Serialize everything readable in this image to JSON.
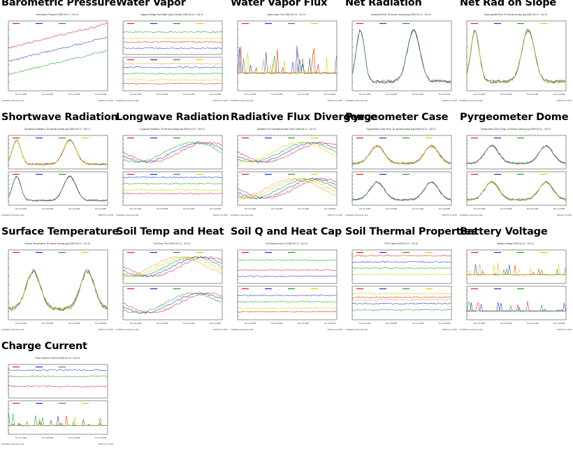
{
  "page": {
    "tiles": [
      {
        "id": "barometric-pressure",
        "title": "Barometric Pressure",
        "plot_title": "Barometric Pressure 2008 Oct 12 - Oct 14",
        "panels": 1
      },
      {
        "id": "water-vapor",
        "title": "Water Vapor",
        "plot_title": "Hygrom Voltage and Water Vapor Density 2008 Oct 12 - Oct 14",
        "panels": 2
      },
      {
        "id": "water-vapor-flux",
        "title": "Water Vapor Flux",
        "plot_title": "Water Vapor Flux 2008 Oct 12 - Oct 14",
        "panels": 1
      },
      {
        "id": "net-radiation",
        "title": "Net Radiation",
        "plot_title": "Horizontal Rnet, 30 minute running avg 2008 Oct 12 - Oct 14",
        "panels": 1
      },
      {
        "id": "net-rad-on-slope",
        "title": "Net Rad on Slope",
        "plot_title": "Slope-parallel Rnet, 30 minute running avg 2008 Oct 12 - Oct 14",
        "panels": 1
      },
      {
        "id": "shortwave-radiation",
        "title": "Shortwave Radiation",
        "plot_title": "Shortwave Radiation, 30 minute running avg 2008 Oct 12 - Oct 14",
        "panels": 2
      },
      {
        "id": "longwave-radiation",
        "title": "Longwave Radiation",
        "plot_title": "Longwave Radiation, 30 minute running avg 2008 Oct 12 - Oct 14",
        "panels": 2
      },
      {
        "id": "radiative-flux-divergence",
        "title": "Radiative Flux Divergence",
        "plot_title": "Radiative Flux Divergence Rad Tower 2008 Oct 12 - Oct 14",
        "panels": 2
      },
      {
        "id": "pyrgeometer-case",
        "title": "Pyrgeometer Case",
        "plot_title": "Pyrgeometer Case Temp, 30 minute running avg 2008 Oct 12 - Oct 14",
        "panels": 2
      },
      {
        "id": "pyrgeometer-dome",
        "title": "Pyrgeometer Dome",
        "plot_title": "Pyrgeometer Dome Temp, 30 minute running avg 2008 Oct 12 - Oct 14",
        "panels": 2
      },
      {
        "id": "surface-temperature",
        "title": "Surface Temperature",
        "plot_title": "Surface Temperature, 30 minute running avg 2008 Oct 12 - Oct 14",
        "panels": 1
      },
      {
        "id": "soil-temp-and-heat",
        "title": "Soil Temp and Heat",
        "plot_title": "Soil Temp, Flux 2008 Oct 12 - Oct 14",
        "panels": 2
      },
      {
        "id": "soil-q-and-heat-cap",
        "title": "Soil Q and Heat Cap",
        "plot_title": "Soil Moisture and Cs 2008 Oct 12 - Oct 14",
        "panels": 2
      },
      {
        "id": "soil-thermal-properties",
        "title": "Soil Thermal Properties",
        "plot_title": "TP01 Output 2008 Oct 12 - Oct 14",
        "panels": 2
      },
      {
        "id": "battery-voltage",
        "title": "Battery Voltage",
        "plot_title": "Battery Voltage 2008 Oct 12 - Oct 14",
        "panels": 2
      },
      {
        "id": "charge-current",
        "title": "Charge Current",
        "plot_title": "Power System Currents 2008 Oct 12 - Oct 14",
        "panels": 2
      }
    ],
    "time_axis_labels": [
      "Oct 12 1200",
      "Oct 13 0000",
      "Oct 13 1200",
      "Oct 14 0000"
    ],
    "footer_left": "NCAR/EOL preliminary data",
    "footer_right": "2008 Oct 14 18:00"
  },
  "chart_data": {
    "type": "line",
    "x": [
      "Oct 12 1200",
      "Oct 13 0000",
      "Oct 13 1200",
      "Oct 14 0000"
    ],
    "series_colors": [
      "#e0201c",
      "#2030d0",
      "#1aa01a",
      "#d4d000",
      "#f0a020",
      "#c040c0",
      "#909090",
      "#40c0c0"
    ]
  }
}
